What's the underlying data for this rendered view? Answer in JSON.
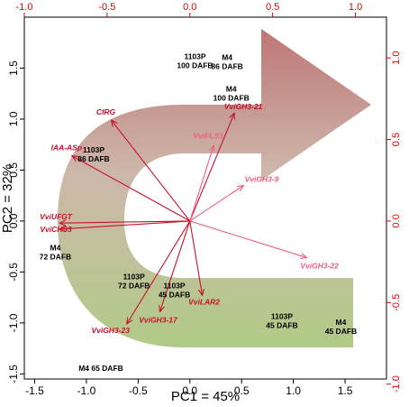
{
  "chart_data": {
    "type": "scatter",
    "subtype": "pca-biplot",
    "xlabel": "PC1 = 45%",
    "ylabel": "PC2 = 32%",
    "xlim": [
      -1.6,
      1.9
    ],
    "ylim": [
      -1.55,
      2.0
    ],
    "x_ticks": [
      "-1.5",
      "-1.0",
      "-0.5",
      "0.0",
      "0.5",
      "1.0",
      "1.5"
    ],
    "y_ticks": [
      "-1.5",
      "-1.0",
      "-0.5",
      "0.0",
      "0.5",
      "1.0",
      "1.5"
    ],
    "top_axis_ticks": [
      "-1.0",
      "-0.5",
      "0.0",
      "0.5",
      "1.0"
    ],
    "right_axis_ticks": [
      "-1.0",
      "-0.5",
      "0.0",
      "0.5",
      "1.0"
    ],
    "secondary_axis_color": "#e00000",
    "samples": [
      {
        "lines": [
          "1103P",
          "100 DAFB"
        ],
        "x": 0.05,
        "y": 1.59
      },
      {
        "lines": [
          "M4",
          "86 DAFB"
        ],
        "x": 0.36,
        "y": 1.58
      },
      {
        "lines": [
          "M4",
          "100 DAFB"
        ],
        "x": 0.4,
        "y": 1.27
      },
      {
        "lines": [
          "1103P",
          "86 DAFB"
        ],
        "x": -0.93,
        "y": 0.67
      },
      {
        "lines": [
          "M4",
          "72 DAFB"
        ],
        "x": -1.3,
        "y": -0.29
      },
      {
        "lines": [
          "1103P",
          "72 DAFB"
        ],
        "x": -0.54,
        "y": -0.57
      },
      {
        "lines": [
          "1103P",
          "45 DAFB"
        ],
        "x": -0.15,
        "y": -0.66
      },
      {
        "lines": [
          "1103P",
          "45 DAFB"
        ],
        "x": 0.89,
        "y": -0.96
      },
      {
        "lines": [
          "M4",
          "45 DAFB"
        ],
        "x": 1.46,
        "y": -1.02
      },
      {
        "lines": [
          "M4 65 DAFB"
        ],
        "x": -0.86,
        "y": -1.47
      }
    ],
    "loadings": [
      {
        "name": "CIRG",
        "x": -0.76,
        "y": 0.99,
        "color": "#c8102e"
      },
      {
        "name": "IAA-ASp",
        "x": -1.14,
        "y": 0.64,
        "color": "#c8102e"
      },
      {
        "name": "VviUFGT",
        "x": -1.26,
        "y": -0.02,
        "color": "#c8102e"
      },
      {
        "name": "VviCHS3",
        "x": -1.26,
        "y": -0.08,
        "color": "#c8102e"
      },
      {
        "name": "VviGH3-21",
        "x": 0.43,
        "y": 1.06,
        "color": "#c8102e"
      },
      {
        "name": "VviFLS1",
        "x": 0.23,
        "y": 0.74,
        "color": "#f06080"
      },
      {
        "name": "VviGH3-9",
        "x": 0.52,
        "y": 0.35,
        "color": "#f06080"
      },
      {
        "name": "VviGH3-22",
        "x": 1.13,
        "y": -0.36,
        "color": "#f06080"
      },
      {
        "name": "VviLAR2",
        "x": 0.12,
        "y": -0.73,
        "color": "#c8102e"
      },
      {
        "name": "VviGH3-17",
        "x": -0.29,
        "y": -0.89,
        "color": "#c8102e"
      },
      {
        "name": "VviGH3-23",
        "x": -0.61,
        "y": -1.01,
        "color": "#c8102e"
      }
    ],
    "background_arrow_colors": {
      "top": "#b86a6a",
      "bottom": "#a9c77c"
    },
    "grid": false
  }
}
